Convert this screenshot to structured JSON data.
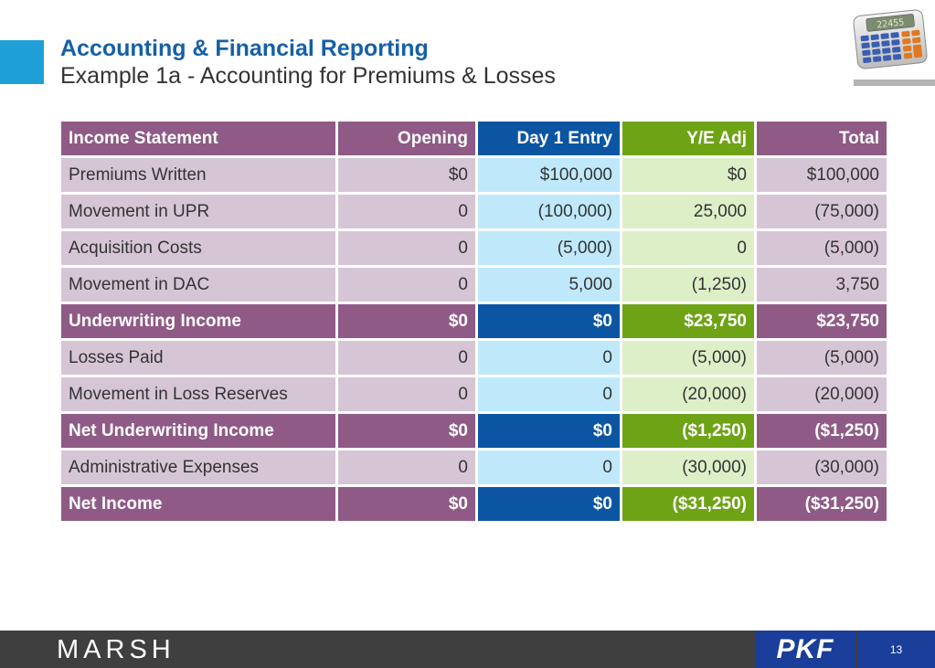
{
  "header": {
    "title": "Accounting & Financial Reporting",
    "subtitle": "Example 1a - Accounting for Premiums & Losses",
    "calculator_display": "22455"
  },
  "table": {
    "columns": [
      "Income Statement",
      "Opening",
      "Day 1 Entry",
      "Y/E Adj",
      "Total"
    ],
    "rows": [
      {
        "label": "Premiums Written",
        "opening": "$0",
        "day1": "$100,000",
        "ye_adj": "$0",
        "total": "$100,000",
        "bold": false
      },
      {
        "label": "Movement in UPR",
        "opening": "0",
        "day1": "(100,000)",
        "ye_adj": "25,000",
        "total": "(75,000)",
        "bold": false
      },
      {
        "label": "Acquisition Costs",
        "opening": "0",
        "day1": "(5,000)",
        "ye_adj": "0",
        "total": "(5,000)",
        "bold": false
      },
      {
        "label": "Movement in DAC",
        "opening": "0",
        "day1": "5,000",
        "ye_adj": "(1,250)",
        "total": "3,750",
        "bold": false
      },
      {
        "label": "Underwriting Income",
        "opening": "$0",
        "day1": "$0",
        "ye_adj": "$23,750",
        "total": "$23,750",
        "bold": true
      },
      {
        "label": "Losses Paid",
        "opening": "0",
        "day1": "0",
        "ye_adj": "(5,000)",
        "total": "(5,000)",
        "bold": false
      },
      {
        "label": "Movement in Loss Reserves",
        "opening": "0",
        "day1": "0",
        "ye_adj": "(20,000)",
        "total": "(20,000)",
        "bold": false
      },
      {
        "label": "Net Underwriting Income",
        "opening": "$0",
        "day1": "$0",
        "ye_adj": "($1,250)",
        "total": "($1,250)",
        "bold": true
      },
      {
        "label": "Administrative Expenses",
        "opening": "0",
        "day1": "0",
        "ye_adj": "(30,000)",
        "total": "(30,000)",
        "bold": false
      },
      {
        "label": "Net Income",
        "opening": "$0",
        "day1": "$0",
        "ye_adj": "($31,250)",
        "total": "($31,250)",
        "bold": true
      }
    ]
  },
  "footer": {
    "marsh_logo": "MARSH",
    "pkf_logo": "PKF",
    "page_number": "13"
  },
  "colors": {
    "title": "#1560a8",
    "accent_square": "#1ea0d7",
    "purple_dark": "#8f5a86",
    "purple_light": "#d6c6d5",
    "blue_dark": "#0b55a3",
    "blue_light": "#bfe9fb",
    "green_dark": "#6ea316",
    "green_light": "#ddefc7",
    "footer_bg": "#3f3f3f",
    "pkf_blue": "#1a3e9a"
  }
}
